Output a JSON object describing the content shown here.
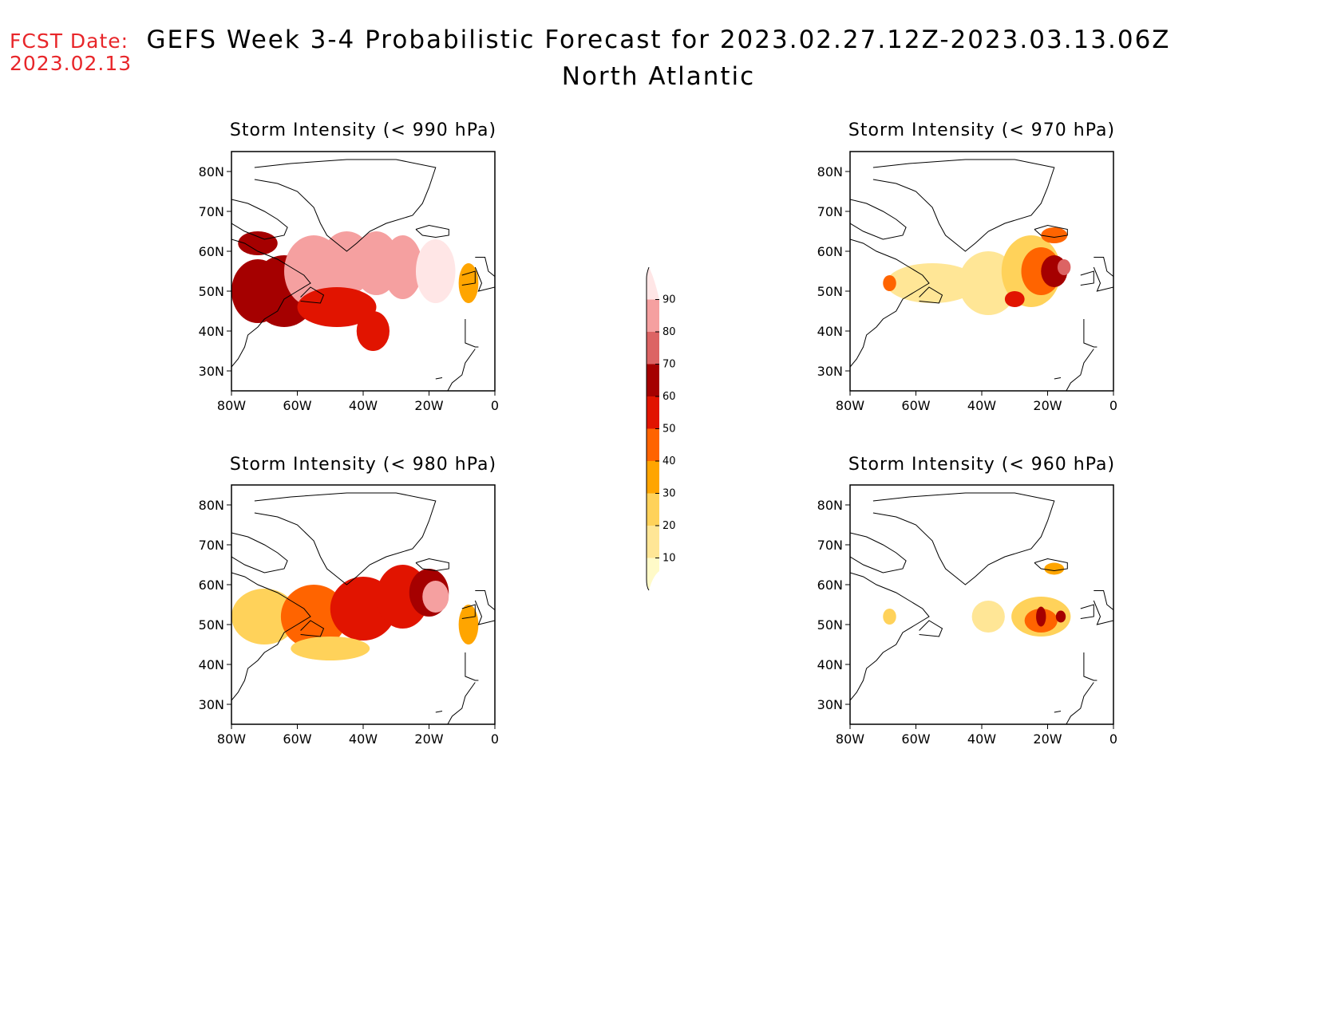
{
  "header": {
    "fcst_label": "FCST Date:",
    "fcst_date": "2023.02.13",
    "title": "GEFS Week 3-4 Probabilistic Forecast for 2023.02.27.12Z-2023.03.13.06Z",
    "subtitle": "North Atlantic"
  },
  "axes": {
    "lat_ticks": [
      "80N",
      "70N",
      "60N",
      "50N",
      "40N",
      "30N"
    ],
    "lon_ticks": [
      "80W",
      "60W",
      "40W",
      "20W",
      "0"
    ],
    "lat_values": [
      80,
      70,
      60,
      50,
      40,
      30
    ],
    "lon_values": [
      -80,
      -60,
      -40,
      -20,
      0
    ],
    "lat_range": [
      25,
      85
    ],
    "lon_range": [
      -80,
      0
    ]
  },
  "colorbar": {
    "levels": [
      10,
      20,
      30,
      40,
      50,
      60,
      70,
      80,
      90
    ],
    "labels": [
      "10",
      "20",
      "30",
      "40",
      "50",
      "60",
      "70",
      "80",
      "90"
    ],
    "colors": [
      "#fffac8",
      "#ffe696",
      "#ffd25a",
      "#ffa500",
      "#ff6400",
      "#e11400",
      "#a50000",
      "#dc6464",
      "#f5a0a0",
      "#ffe6e6"
    ]
  },
  "panels": [
    {
      "title": "Storm Intensity (< 990 hPa)",
      "blobs": [
        {
          "lon": -72,
          "lat": 50,
          "level": 60,
          "rx": 8,
          "ry": 8
        },
        {
          "lon": -64,
          "lat": 50,
          "level": 60,
          "rx": 10,
          "ry": 9
        },
        {
          "lon": -55,
          "lat": 55,
          "level": 80,
          "rx": 9,
          "ry": 9
        },
        {
          "lon": -45,
          "lat": 57,
          "level": 80,
          "rx": 8,
          "ry": 8
        },
        {
          "lon": -36,
          "lat": 57,
          "level": 80,
          "rx": 7,
          "ry": 8
        },
        {
          "lon": -28,
          "lat": 56,
          "level": 80,
          "rx": 6,
          "ry": 8
        },
        {
          "lon": -18,
          "lat": 55,
          "level": 90,
          "rx": 6,
          "ry": 8
        },
        {
          "lon": -48,
          "lat": 46,
          "level": 50,
          "rx": 12,
          "ry": 5
        },
        {
          "lon": -37,
          "lat": 40,
          "level": 50,
          "rx": 5,
          "ry": 5
        },
        {
          "lon": -72,
          "lat": 62,
          "level": 60,
          "rx": 6,
          "ry": 3
        },
        {
          "lon": -8,
          "lat": 52,
          "level": 30,
          "rx": 3,
          "ry": 5
        }
      ]
    },
    {
      "title": "Storm Intensity (< 970 hPa)",
      "blobs": [
        {
          "lon": -55,
          "lat": 52,
          "level": 10,
          "rx": 14,
          "ry": 5
        },
        {
          "lon": -38,
          "lat": 52,
          "level": 10,
          "rx": 9,
          "ry": 8
        },
        {
          "lon": -25,
          "lat": 55,
          "level": 20,
          "rx": 9,
          "ry": 9
        },
        {
          "lon": -22,
          "lat": 55,
          "level": 40,
          "rx": 6,
          "ry": 6
        },
        {
          "lon": -18,
          "lat": 55,
          "level": 60,
          "rx": 4,
          "ry": 4
        },
        {
          "lon": -15,
          "lat": 56,
          "level": 70,
          "rx": 2,
          "ry": 2
        },
        {
          "lon": -30,
          "lat": 48,
          "level": 50,
          "rx": 3,
          "ry": 2
        },
        {
          "lon": -18,
          "lat": 64,
          "level": 40,
          "rx": 4,
          "ry": 2
        },
        {
          "lon": -68,
          "lat": 52,
          "level": 40,
          "rx": 2,
          "ry": 2
        }
      ]
    },
    {
      "title": "Storm Intensity (< 980 hPa)",
      "blobs": [
        {
          "lon": -70,
          "lat": 52,
          "level": 20,
          "rx": 10,
          "ry": 7
        },
        {
          "lon": -55,
          "lat": 52,
          "level": 40,
          "rx": 10,
          "ry": 8
        },
        {
          "lon": -40,
          "lat": 54,
          "level": 50,
          "rx": 10,
          "ry": 8
        },
        {
          "lon": -28,
          "lat": 57,
          "level": 50,
          "rx": 8,
          "ry": 8
        },
        {
          "lon": -20,
          "lat": 58,
          "level": 60,
          "rx": 6,
          "ry": 6
        },
        {
          "lon": -18,
          "lat": 57,
          "level": 80,
          "rx": 4,
          "ry": 4
        },
        {
          "lon": -50,
          "lat": 44,
          "level": 20,
          "rx": 12,
          "ry": 3
        },
        {
          "lon": -8,
          "lat": 50,
          "level": 30,
          "rx": 3,
          "ry": 5
        }
      ]
    },
    {
      "title": "Storm Intensity (< 960 hPa)",
      "blobs": [
        {
          "lon": -38,
          "lat": 52,
          "level": 10,
          "rx": 5,
          "ry": 4
        },
        {
          "lon": -22,
          "lat": 52,
          "level": 20,
          "rx": 9,
          "ry": 5
        },
        {
          "lon": -22,
          "lat": 51,
          "level": 40,
          "rx": 5,
          "ry": 3
        },
        {
          "lon": -22,
          "lat": 52,
          "level": 60,
          "rx": 1.5,
          "ry": 2.5
        },
        {
          "lon": -16,
          "lat": 52,
          "level": 60,
          "rx": 1.5,
          "ry": 1.5
        },
        {
          "lon": -18,
          "lat": 64,
          "level": 30,
          "rx": 3,
          "ry": 1.5
        },
        {
          "lon": -68,
          "lat": 52,
          "level": 20,
          "rx": 2,
          "ry": 2
        }
      ]
    }
  ]
}
